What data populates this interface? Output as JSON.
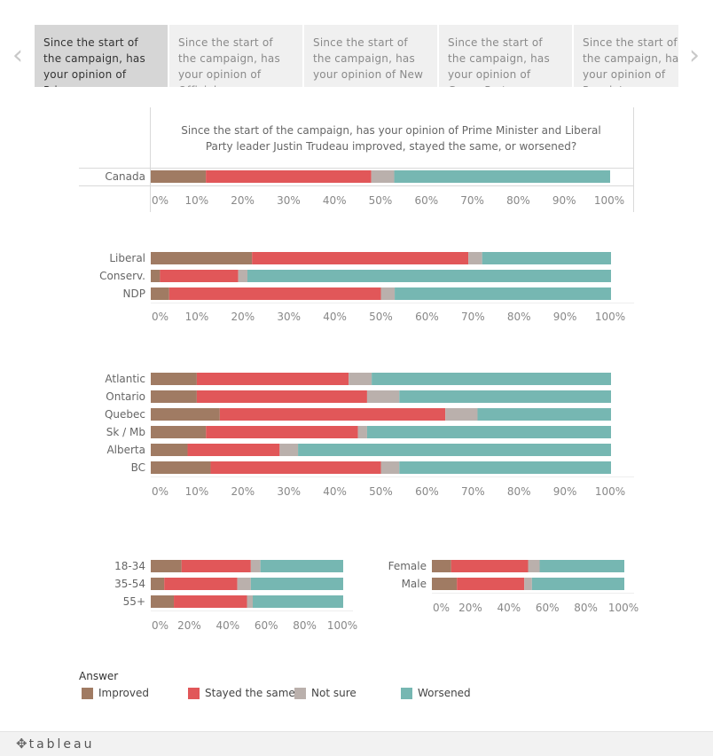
{
  "nav": {
    "prev_icon": "chevron-left-icon",
    "next_icon": "chevron-right-icon",
    "tabs": [
      {
        "label": "Since the start of the campaign, has your opinion of Prime …",
        "active": true
      },
      {
        "label": "Since the start of the campaign, has your opinion of Official",
        "active": false
      },
      {
        "label": "Since the start of the campaign, has your opinion of New",
        "active": false
      },
      {
        "label": "Since the start of the campaign, has your opinion of Green Party",
        "active": false
      },
      {
        "label": "Since the start of the campaign, has your opinion of People's",
        "active": false
      }
    ]
  },
  "colors": {
    "Improved": "#a07b63",
    "Stayed the same": "#e15759",
    "Not sure": "#bab0ac",
    "Worsened": "#76b7b2"
  },
  "legend": {
    "title": "Answer",
    "items": [
      "Improved",
      "Stayed the same",
      "Not sure",
      "Worsened"
    ]
  },
  "footer": {
    "logo": "tableau",
    "logo_icon": "tableau-plus-icon"
  },
  "chart_data": [
    {
      "type": "bar",
      "orientation": "horizontal",
      "stacked": "percent",
      "title": "Since the start of the campaign, has your opinion of Prime Minister and Liberal Party leader Justin Trudeau improved, stayed the same, or worsened?",
      "categories": [
        "Canada"
      ],
      "series": [
        {
          "name": "Improved",
          "values": [
            12
          ]
        },
        {
          "name": "Stayed the same",
          "values": [
            36
          ]
        },
        {
          "name": "Not sure",
          "values": [
            5
          ]
        },
        {
          "name": "Worsened",
          "values": [
            47
          ]
        }
      ],
      "xticks": [
        "0%",
        "10%",
        "20%",
        "30%",
        "40%",
        "50%",
        "60%",
        "70%",
        "80%",
        "90%",
        "100%"
      ],
      "xlim": [
        0,
        100
      ]
    },
    {
      "type": "bar",
      "orientation": "horizontal",
      "stacked": "percent",
      "categories": [
        "Liberal",
        "Conserv.",
        "NDP"
      ],
      "series": [
        {
          "name": "Improved",
          "values": [
            22,
            2,
            4
          ]
        },
        {
          "name": "Stayed the same",
          "values": [
            47,
            17,
            46
          ]
        },
        {
          "name": "Not sure",
          "values": [
            3,
            2,
            3
          ]
        },
        {
          "name": "Worsened",
          "values": [
            28,
            79,
            47
          ]
        }
      ],
      "xticks": [
        "0%",
        "10%",
        "20%",
        "30%",
        "40%",
        "50%",
        "60%",
        "70%",
        "80%",
        "90%",
        "100%"
      ],
      "xlim": [
        0,
        100
      ]
    },
    {
      "type": "bar",
      "orientation": "horizontal",
      "stacked": "percent",
      "categories": [
        "Atlantic",
        "Ontario",
        "Quebec",
        "Sk / Mb",
        "Alberta",
        "BC"
      ],
      "series": [
        {
          "name": "Improved",
          "values": [
            10,
            10,
            15,
            12,
            8,
            13
          ]
        },
        {
          "name": "Stayed the same",
          "values": [
            33,
            37,
            49,
            33,
            20,
            37
          ]
        },
        {
          "name": "Not sure",
          "values": [
            5,
            7,
            7,
            2,
            4,
            4
          ]
        },
        {
          "name": "Worsened",
          "values": [
            52,
            46,
            29,
            53,
            68,
            46
          ]
        }
      ],
      "xticks": [
        "0%",
        "10%",
        "20%",
        "30%",
        "40%",
        "50%",
        "60%",
        "70%",
        "80%",
        "90%",
        "100%"
      ],
      "xlim": [
        0,
        100
      ]
    },
    {
      "type": "bar",
      "orientation": "horizontal",
      "stacked": "percent",
      "categories": [
        "18-34",
        "35-54",
        "55+"
      ],
      "series": [
        {
          "name": "Improved",
          "values": [
            16,
            7,
            12
          ]
        },
        {
          "name": "Stayed the same",
          "values": [
            36,
            38,
            38
          ]
        },
        {
          "name": "Not sure",
          "values": [
            5,
            7,
            3
          ]
        },
        {
          "name": "Worsened",
          "values": [
            43,
            48,
            47
          ]
        }
      ],
      "xticks": [
        "0%",
        "20%",
        "40%",
        "60%",
        "80%",
        "100%"
      ],
      "xlim": [
        0,
        100
      ]
    },
    {
      "type": "bar",
      "orientation": "horizontal",
      "stacked": "percent",
      "categories": [
        "Female",
        "Male"
      ],
      "series": [
        {
          "name": "Improved",
          "values": [
            10,
            13
          ]
        },
        {
          "name": "Stayed the same",
          "values": [
            40,
            35
          ]
        },
        {
          "name": "Not sure",
          "values": [
            6,
            4
          ]
        },
        {
          "name": "Worsened",
          "values": [
            44,
            48
          ]
        }
      ],
      "xticks": [
        "0%",
        "20%",
        "40%",
        "60%",
        "80%",
        "100%"
      ],
      "xlim": [
        0,
        100
      ]
    }
  ]
}
